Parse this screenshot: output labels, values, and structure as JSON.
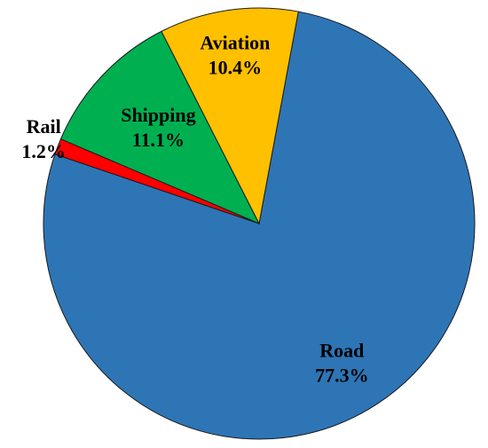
{
  "chart_data": {
    "type": "pie",
    "categories": [
      "Road",
      "Rail",
      "Shipping",
      "Aviation"
    ],
    "values": [
      77.3,
      1.2,
      11.1,
      10.4
    ],
    "value_labels": [
      "77.3%",
      "1.2%",
      "11.1%",
      "10.4%"
    ],
    "colors": [
      "#2e75b6",
      "#ff0000",
      "#00b050",
      "#ffc000"
    ]
  }
}
